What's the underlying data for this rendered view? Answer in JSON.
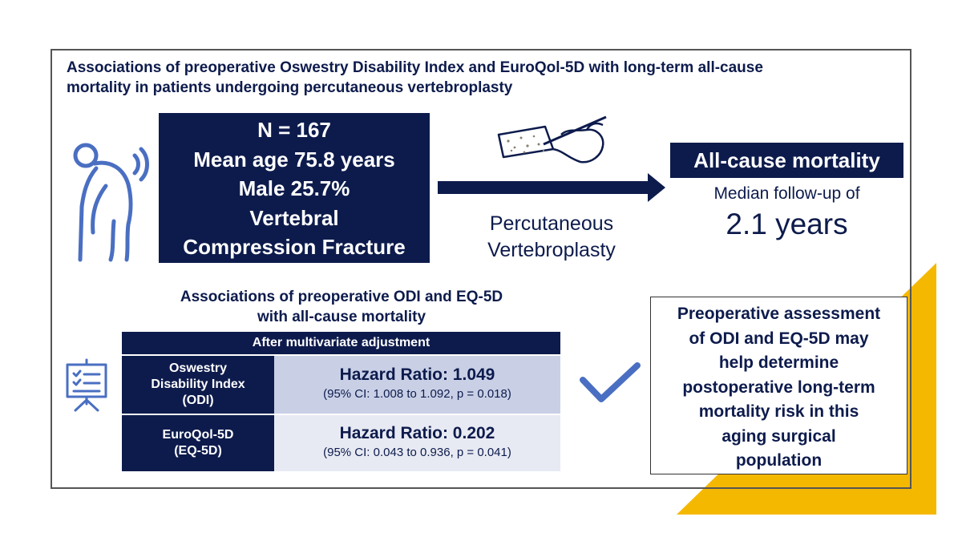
{
  "title": {
    "line1": "Associations of preoperative Oswestry Disability Index and EuroQol-5D with long-term all-cause",
    "line2": "mortality in patients undergoing percutaneous vertebroplasty"
  },
  "cohort": {
    "lines": [
      "N = 167",
      "Mean age 75.8 years",
      "Male 25.7%",
      "Vertebral",
      "Compression Fracture"
    ]
  },
  "procedure": {
    "lines": [
      "Percutaneous",
      "Vertebroplasty"
    ]
  },
  "outcome": {
    "label": "All-cause mortality",
    "followup_label": "Median follow-up of",
    "followup_value": "2.1 years"
  },
  "results": {
    "title_lines": [
      "Associations of preoperative ODI and EQ-5D",
      "with all-cause mortality"
    ],
    "header": "After multivariate adjustment",
    "rows": [
      {
        "label_lines": [
          "Oswestry",
          "Disability Index",
          "(ODI)"
        ],
        "hazard_ratio": "Hazard Ratio: 1.049",
        "ci": "(95% CI: 1.008 to 1.092, p = 0.018)"
      },
      {
        "label_lines": [
          "EuroQol-5D",
          "(EQ-5D)"
        ],
        "hazard_ratio": "Hazard Ratio: 0.202",
        "ci": "(95% CI: 0.043 to 0.936, p = 0.041)"
      }
    ]
  },
  "conclusion": {
    "lines": [
      "Preoperative assessment",
      "of ODI and EQ-5D may",
      "help determine",
      "postoperative long-term",
      "mortality risk in this",
      "aging surgical",
      "population"
    ]
  },
  "colors": {
    "navy": "#0d1b4c",
    "row1_fill": "#c9d0e6",
    "row2_fill": "#e8eaf3",
    "accent_yellow": "#f5b800",
    "icon_blue": "#4a6fc2"
  },
  "icons": [
    "elderly-person-back-pain-icon",
    "vertebra-needle-icon",
    "presentation-board-icon",
    "checkmark-icon"
  ]
}
